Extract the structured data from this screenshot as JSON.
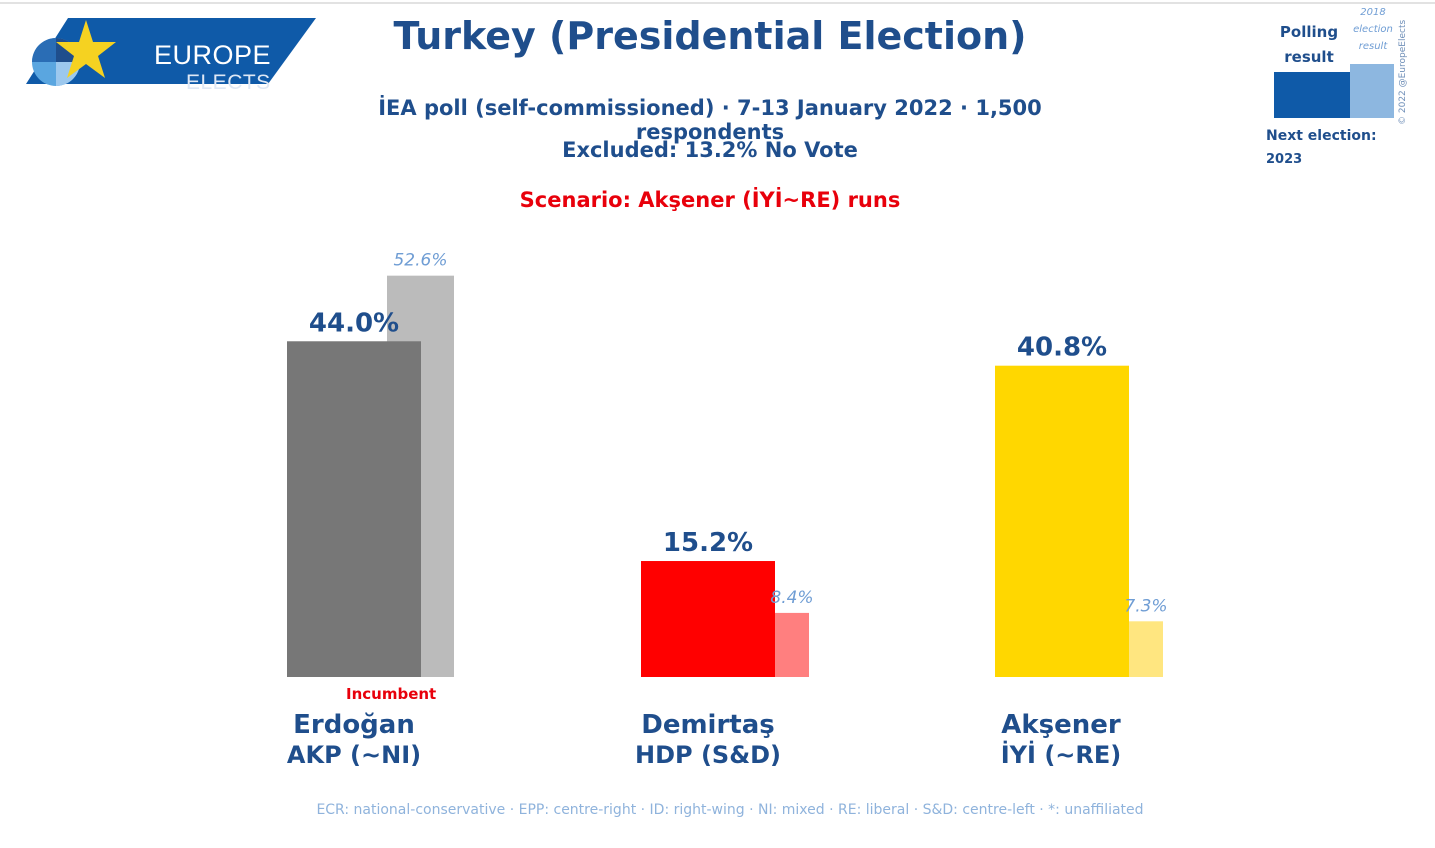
{
  "brand": {
    "line1": "EUROPE",
    "line2": "ELECTS",
    "colors": {
      "blue": "#0f5aa8",
      "star": "#f5d221"
    }
  },
  "legend": {
    "polling_line1": "Polling",
    "polling_line2": "result",
    "prev_line1": "2018",
    "prev_line2": "election",
    "prev_line3": "result",
    "next_label": "Next election:",
    "next_value": "2023",
    "copyright": "© 2022 @EuropeElects"
  },
  "footer": "ECR: national-conservative · EPP: centre-right · ID: right-wing · NI: mixed · RE: liberal · S&D: centre-left · *: unaffiliated",
  "chart_data": {
    "type": "bar",
    "title": "Turkey (Presidential Election)",
    "subtitle": "İEA poll (self-commissioned) · 7-13 January 2022 · 1,500 respondents",
    "note": "Excluded: 13.2% No Vote",
    "scenario": "Scenario: Akşener (İYİ~RE) runs",
    "ylim": [
      0,
      55
    ],
    "grid": false,
    "legend_position": "top-right",
    "categories": [
      "Erdoğan",
      "Demirtaş",
      "Akşener"
    ],
    "parties": [
      "AKP (~NI)",
      "HDP (S&D)",
      "İYİ (~RE)"
    ],
    "series": [
      {
        "name": "Polling result",
        "values": [
          44.0,
          15.2,
          40.8
        ],
        "labels": [
          "44.0%",
          "15.2%",
          "40.8%"
        ],
        "colors": [
          "#777777",
          "#ff0000",
          "#ffd700"
        ]
      },
      {
        "name": "2018 election result",
        "values": [
          52.6,
          8.4,
          7.3
        ],
        "labels": [
          "52.6%",
          "8.4%",
          "7.3%"
        ],
        "colors": [
          "#bbbbbb",
          "#ff7f7f",
          "#ffe680"
        ]
      }
    ],
    "incumbent": "Incumbent",
    "incumbent_index": 0
  }
}
